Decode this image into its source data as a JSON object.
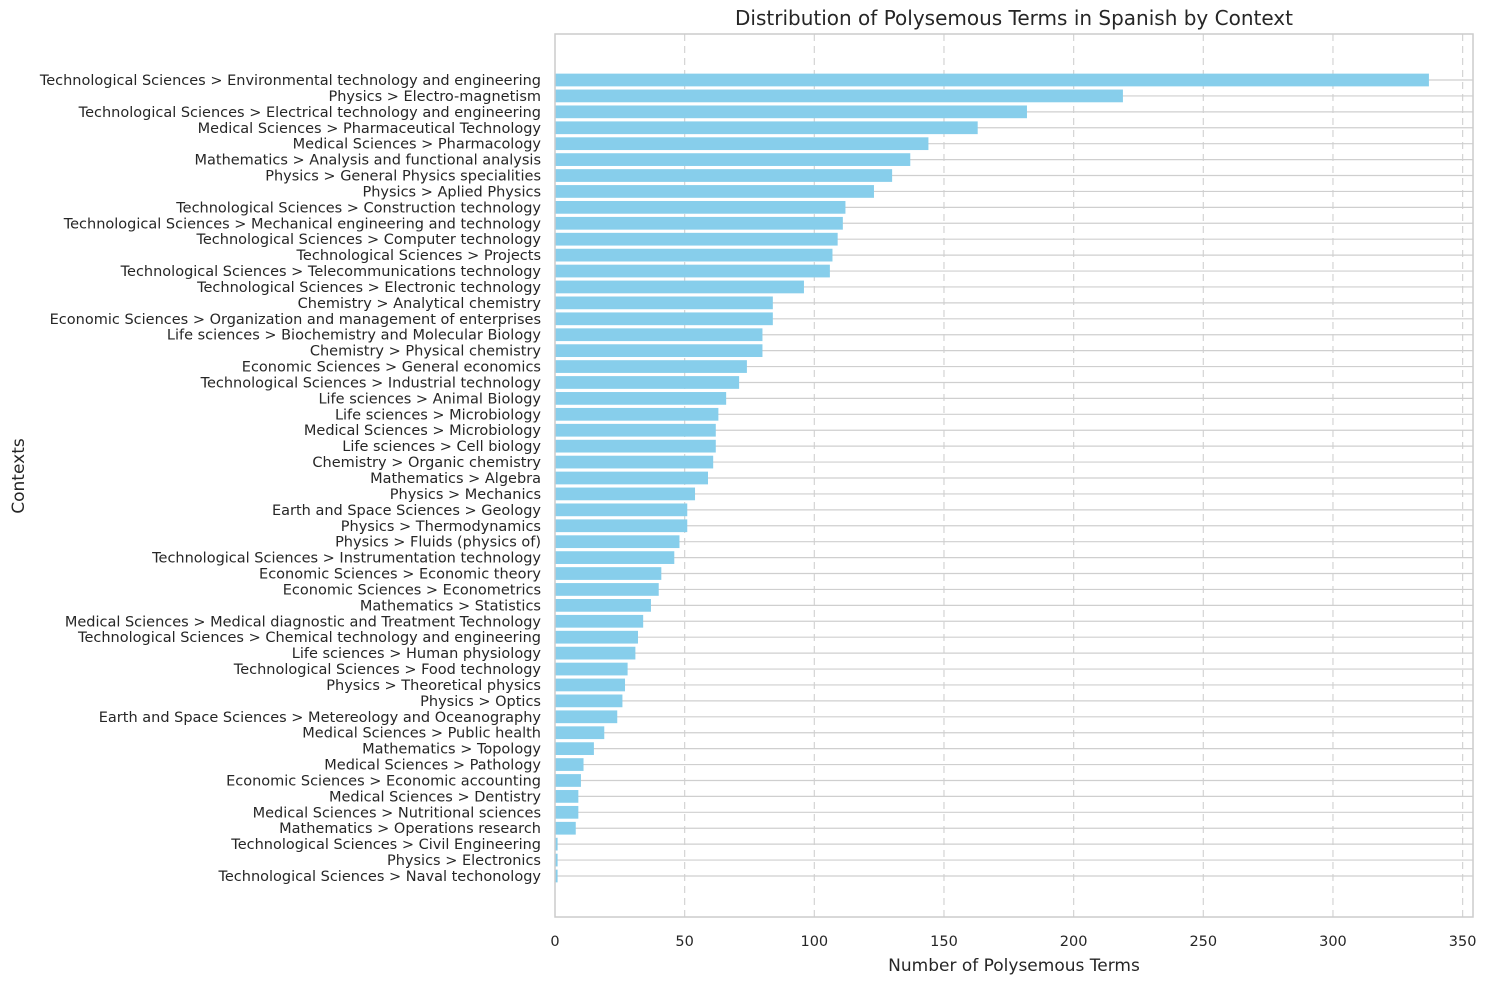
{
  "chart_data": {
    "type": "bar",
    "orientation": "horizontal",
    "title": "Distribution of Polysemous Terms in Spanish by Context",
    "xlabel": "Number of Polysemous Terms",
    "ylabel": "Contexts",
    "xlim": [
      0,
      354
    ],
    "xticks": [
      "0",
      "50",
      "100",
      "150",
      "200",
      "250",
      "300",
      "350"
    ],
    "grid": true,
    "bar_color": "#87ceeb",
    "categories": [
      "Technological Sciences > Environmental technology and engineering",
      "Physics > Electro-magnetism",
      "Technological Sciences > Electrical technology and engineering",
      "Medical Sciences > Pharmaceutical Technology",
      "Medical Sciences > Pharmacology",
      "Mathematics > Analysis and functional analysis",
      "Physics > General Physics specialities",
      "Physics > Aplied Physics",
      "Technological Sciences > Construction technology",
      "Technological Sciences > Mechanical engineering and technology",
      "Technological Sciences > Computer technology",
      "Technological Sciences > Projects",
      "Technological Sciences > Telecommunications technology",
      "Technological Sciences > Electronic technology",
      "Chemistry > Analytical chemistry",
      "Economic Sciences > Organization and management of enterprises",
      "Life sciences > Biochemistry and Molecular Biology",
      "Chemistry > Physical chemistry",
      "Economic Sciences > General economics",
      "Technological Sciences > Industrial technology",
      "Life sciences > Animal Biology",
      "Life sciences > Microbiology",
      "Medical Sciences > Microbiology",
      "Life sciences > Cell biology",
      "Chemistry > Organic chemistry",
      "Mathematics > Algebra",
      "Physics > Mechanics",
      "Earth and Space Sciences > Geology",
      "Physics > Thermodynamics",
      "Physics > Fluids (physics of)",
      "Technological Sciences > Instrumentation technology",
      "Economic Sciences > Economic theory",
      "Economic Sciences > Econometrics",
      "Mathematics > Statistics",
      "Medical Sciences > Medical diagnostic and Treatment Technology",
      "Technological Sciences > Chemical technology and engineering",
      "Life sciences > Human physiology",
      "Technological Sciences > Food technology",
      "Physics > Theoretical physics",
      "Physics > Optics",
      "Earth and Space Sciences > Metereology and Oceanography",
      "Medical Sciences > Public health",
      "Mathematics > Topology",
      "Medical Sciences > Pathology",
      "Economic Sciences > Economic accounting",
      "Medical Sciences > Dentistry",
      "Medical Sciences > Nutritional sciences",
      "Mathematics > Operations research",
      "Technological Sciences > Civil Engineering",
      "Physics > Electronics",
      "Technological Sciences > Naval techonology"
    ],
    "values": [
      337,
      219,
      182,
      163,
      144,
      137,
      130,
      123,
      112,
      111,
      109,
      107,
      106,
      96,
      84,
      84,
      80,
      80,
      74,
      71,
      66,
      63,
      62,
      62,
      61,
      59,
      54,
      51,
      51,
      48,
      46,
      41,
      40,
      37,
      34,
      32,
      31,
      28,
      27,
      26,
      24,
      19,
      15,
      11,
      10,
      9,
      9,
      8,
      1,
      1,
      1
    ]
  }
}
